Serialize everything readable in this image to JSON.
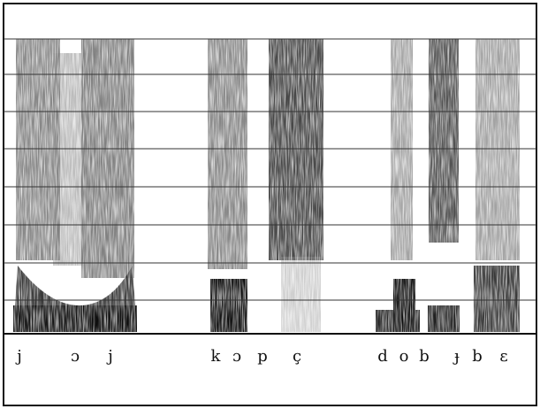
{
  "labels": [
    "j",
    "ɔ",
    "j",
    "k",
    "ɔ",
    "p",
    "ç",
    "d",
    "o",
    "b",
    "ɟ",
    "b",
    "ɛ"
  ]
}
